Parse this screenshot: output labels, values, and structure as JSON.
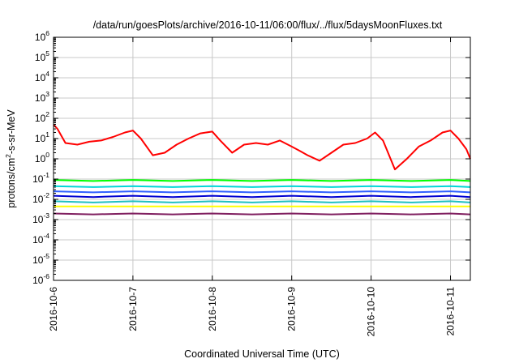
{
  "chart_data": {
    "type": "line",
    "title": "/data/run/goesPlots/archive/2016-10-11/06:00/flux/../flux/5daysMoonFluxes.txt",
    "xlabel": "Coordinated Universal Time (UTC)",
    "ylabel": "protons/cm²-s-sr-MeV",
    "ylabel_parts": {
      "pre": "protons/cm",
      "sup": "2",
      "post": "-s-sr-MeV"
    },
    "x_tick_labels": [
      "2016-10-6",
      "2016-10-7",
      "2016-10-8",
      "2016-10-9",
      "2016-10-10",
      "2016-10-11"
    ],
    "x_range": [
      "2016-10-06 00:00",
      "2016-10-11 06:00"
    ],
    "y_scale": "log",
    "ylim": [
      1e-06,
      1000000.0
    ],
    "y_tick_labels": [
      {
        "base": "10",
        "exp": "6"
      },
      {
        "base": "10",
        "exp": "5"
      },
      {
        "base": "10",
        "exp": "4"
      },
      {
        "base": "10",
        "exp": "3"
      },
      {
        "base": "10",
        "exp": "2"
      },
      {
        "base": "10",
        "exp": "1"
      },
      {
        "base": "10",
        "exp": "0"
      },
      {
        "base": "10",
        "exp": "-1"
      },
      {
        "base": "10",
        "exp": "-2"
      },
      {
        "base": "10",
        "exp": "-3"
      },
      {
        "base": "10",
        "exp": "-4"
      },
      {
        "base": "10",
        "exp": "-5"
      },
      {
        "base": "10",
        "exp": "-6"
      }
    ],
    "grid": true,
    "x_grid_days": [
      0,
      1,
      2,
      3,
      4,
      5
    ],
    "series": [
      {
        "color": "#ff0000",
        "x_days": [
          0.0,
          0.05,
          0.15,
          0.3,
          0.45,
          0.6,
          0.75,
          0.9,
          1.0,
          1.1,
          1.25,
          1.4,
          1.55,
          1.7,
          1.85,
          2.0,
          2.1,
          2.25,
          2.4,
          2.55,
          2.7,
          2.85,
          3.0,
          3.1,
          3.2,
          3.35,
          3.5,
          3.65,
          3.8,
          3.95,
          4.05,
          4.15,
          4.3,
          4.45,
          4.6,
          4.75,
          4.9,
          5.0,
          5.1,
          5.2,
          5.25
        ],
        "values": [
          50,
          30,
          6,
          5,
          7,
          8,
          12,
          20,
          25,
          10,
          1.5,
          2,
          5,
          10,
          18,
          22,
          8,
          2,
          5,
          6,
          5,
          8,
          4,
          2.5,
          1.5,
          0.8,
          2,
          5,
          6,
          10,
          20,
          8,
          0.3,
          1,
          4,
          8,
          20,
          25,
          10,
          3,
          1
        ]
      },
      {
        "color": "#00ff00",
        "x_days": [
          0.0,
          0.5,
          1.0,
          1.5,
          2.0,
          2.5,
          3.0,
          3.5,
          4.0,
          4.5,
          5.0,
          5.25
        ],
        "values": [
          0.09,
          0.08,
          0.09,
          0.08,
          0.09,
          0.08,
          0.09,
          0.08,
          0.09,
          0.08,
          0.09,
          0.08
        ]
      },
      {
        "color": "#00d7d7",
        "x_days": [
          0.0,
          0.5,
          1.0,
          1.5,
          2.0,
          2.5,
          3.0,
          3.5,
          4.0,
          4.5,
          5.0,
          5.25
        ],
        "values": [
          0.045,
          0.04,
          0.045,
          0.04,
          0.045,
          0.04,
          0.045,
          0.04,
          0.045,
          0.04,
          0.045,
          0.04
        ]
      },
      {
        "color": "#3060ff",
        "x_days": [
          0.0,
          0.5,
          1.0,
          1.5,
          2.0,
          2.5,
          3.0,
          3.5,
          4.0,
          4.5,
          5.0,
          5.25
        ],
        "values": [
          0.025,
          0.022,
          0.025,
          0.022,
          0.025,
          0.022,
          0.025,
          0.022,
          0.025,
          0.022,
          0.025,
          0.022
        ]
      },
      {
        "color": "#0000d0",
        "x_days": [
          0.0,
          0.5,
          1.0,
          1.5,
          2.0,
          2.5,
          3.0,
          3.5,
          4.0,
          4.5,
          5.0,
          5.25
        ],
        "values": [
          0.015,
          0.013,
          0.015,
          0.013,
          0.015,
          0.013,
          0.015,
          0.013,
          0.015,
          0.013,
          0.015,
          0.013
        ]
      },
      {
        "color": "#20c0c0",
        "x_days": [
          0.0,
          0.5,
          1.0,
          1.5,
          2.0,
          2.5,
          3.0,
          3.5,
          4.0,
          4.5,
          5.0,
          5.25
        ],
        "values": [
          0.008,
          0.007,
          0.008,
          0.007,
          0.008,
          0.007,
          0.008,
          0.007,
          0.008,
          0.007,
          0.008,
          0.007
        ]
      },
      {
        "color": "#ffff00",
        "x_days": [
          0.0,
          0.5,
          1.0,
          1.5,
          2.0,
          2.5,
          3.0,
          3.5,
          4.0,
          4.5,
          5.0,
          5.25
        ],
        "values": [
          0.0045,
          0.0045,
          0.0045,
          0.0045,
          0.0045,
          0.0045,
          0.0045,
          0.0045,
          0.0045,
          0.0045,
          0.0045,
          0.0045
        ]
      },
      {
        "color": "#802060",
        "x_days": [
          0.0,
          0.5,
          1.0,
          1.5,
          2.0,
          2.5,
          3.0,
          3.5,
          4.0,
          4.5,
          5.0,
          5.25
        ],
        "values": [
          0.002,
          0.0018,
          0.002,
          0.0018,
          0.002,
          0.0018,
          0.002,
          0.0018,
          0.002,
          0.0018,
          0.002,
          0.0018
        ]
      }
    ]
  }
}
